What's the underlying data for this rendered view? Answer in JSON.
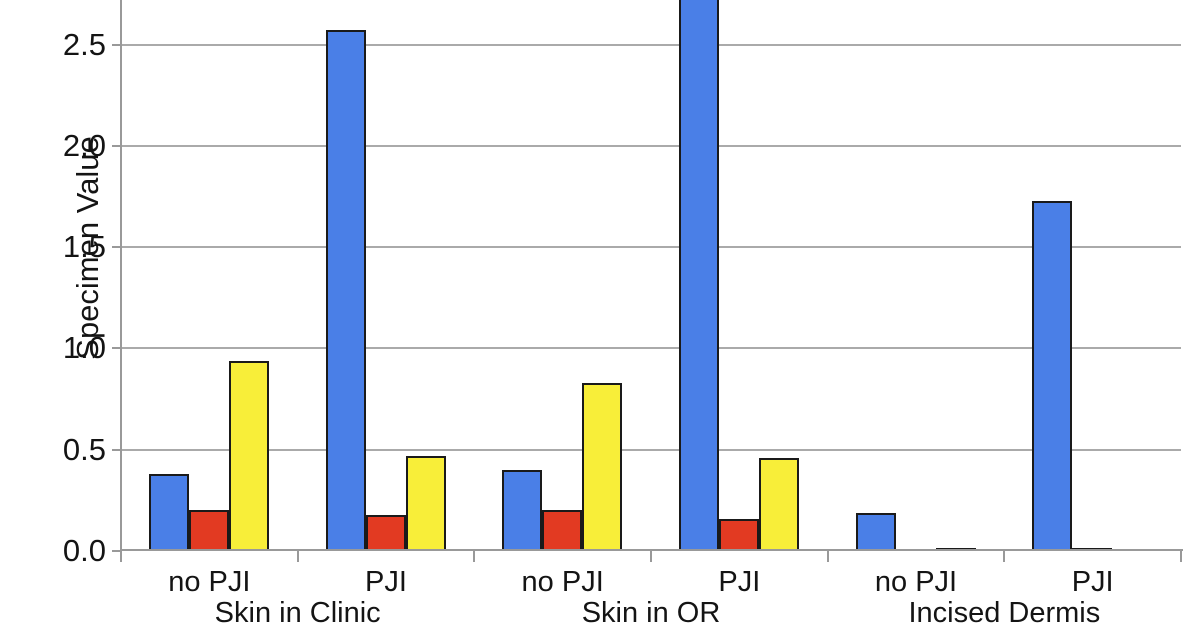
{
  "chart_data": {
    "type": "bar",
    "title": "",
    "ylabel": "Specimen Value",
    "xlabel": "",
    "ylim": [
      0,
      2.72
    ],
    "ytick_labels": [
      "0.0",
      "0.5",
      "1.0",
      "1.5",
      "2.0",
      "2.5"
    ],
    "grid": true,
    "legend": false,
    "group_labels": [
      "Skin in Clinic",
      "Skin in OR",
      "Incised Dermis"
    ],
    "categories": [
      "no PJI",
      "PJI",
      "no PJI",
      "PJI",
      "no PJI",
      "PJI"
    ],
    "series": [
      {
        "name": "blue-series",
        "color": "#4a7fe7",
        "values": [
          0.38,
          2.57,
          0.4,
          2.9,
          0.19,
          1.73
        ]
      },
      {
        "name": "red-series",
        "color": "#e23a22",
        "values": [
          0.2,
          0.18,
          0.2,
          0.16,
          0,
          0.015
        ]
      },
      {
        "name": "yellow-series",
        "color": "#f8ee39",
        "values": [
          0.94,
          0.47,
          0.83,
          0.46,
          0.01,
          0
        ]
      }
    ],
    "clipped_note": "Blue bar for Skin in OR / PJI extends past the top edge of the image (value > 2.72)"
  },
  "colors": {
    "background": "#ffffff",
    "bar_outline": "#1a1a1a",
    "gridline": "#aaaaaa",
    "axis": "#999999",
    "text": "#141414"
  }
}
